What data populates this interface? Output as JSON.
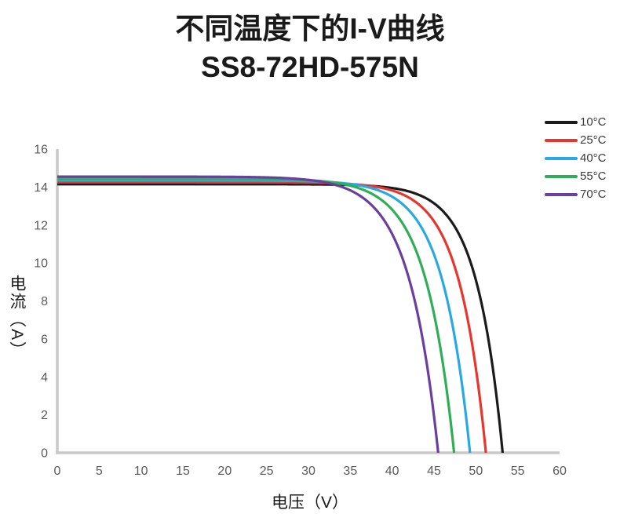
{
  "chart_data": {
    "type": "line",
    "title": "不同温度下的I-V曲线",
    "subtitle": "SS8-72HD-575N",
    "xlabel": "电压（V）",
    "ylabel": "电流（A）",
    "xlim": [
      0,
      60
    ],
    "ylim": [
      0,
      16
    ],
    "xticks": [
      0,
      5,
      10,
      15,
      20,
      25,
      30,
      35,
      40,
      45,
      50,
      55,
      60
    ],
    "yticks": [
      0,
      2,
      4,
      6,
      8,
      10,
      12,
      14,
      16
    ],
    "grid": false,
    "legend_position": "top-right",
    "axis_color": "#c9c9c9",
    "tick_label_color": "#5a5a5a",
    "series": [
      {
        "name": "10°C",
        "color": "#1b1b1b",
        "isc_a": 14.15,
        "voc_v": 53.2,
        "knee_v": 3.1,
        "points": [
          [
            0,
            14.15
          ],
          [
            5,
            14.15
          ],
          [
            10,
            14.15
          ],
          [
            15,
            14.15
          ],
          [
            20,
            14.15
          ],
          [
            25,
            14.15
          ],
          [
            30,
            14.14
          ],
          [
            35,
            14.11
          ],
          [
            40,
            13.95
          ],
          [
            45,
            13.14
          ],
          [
            48,
            11.51
          ],
          [
            50,
            9.11
          ],
          [
            52,
            4.55
          ],
          [
            53,
            0.88
          ],
          [
            53.2,
            0
          ]
        ]
      },
      {
        "name": "25°C",
        "color": "#e8352e",
        "isc_a": 14.25,
        "voc_v": 51.2,
        "knee_v": 3.2,
        "points": [
          [
            0,
            14.25
          ],
          [
            5,
            14.25
          ],
          [
            10,
            14.25
          ],
          [
            15,
            14.25
          ],
          [
            20,
            14.25
          ],
          [
            25,
            14.25
          ],
          [
            30,
            14.23
          ],
          [
            35,
            14.16
          ],
          [
            40,
            13.82
          ],
          [
            45,
            12.2
          ],
          [
            48,
            9.01
          ],
          [
            50,
            4.46
          ],
          [
            51,
            0.86
          ],
          [
            51.2,
            0
          ]
        ]
      },
      {
        "name": "40°C",
        "color": "#29a9e1",
        "isc_a": 14.35,
        "voc_v": 49.3,
        "knee_v": 3.3,
        "points": [
          [
            0,
            14.35
          ],
          [
            5,
            14.35
          ],
          [
            10,
            14.35
          ],
          [
            15,
            14.35
          ],
          [
            20,
            14.35
          ],
          [
            25,
            14.35
          ],
          [
            30,
            14.33
          ],
          [
            35,
            14.16
          ],
          [
            40,
            13.49
          ],
          [
            44,
            11.47
          ],
          [
            46,
            9.06
          ],
          [
            48,
            4.67
          ],
          [
            49,
            1.25
          ],
          [
            49.3,
            0
          ]
        ]
      },
      {
        "name": "55°C",
        "color": "#2fae57",
        "isc_a": 14.45,
        "voc_v": 47.4,
        "knee_v": 3.4,
        "points": [
          [
            0,
            14.45
          ],
          [
            5,
            14.45
          ],
          [
            10,
            14.45
          ],
          [
            15,
            14.45
          ],
          [
            20,
            14.45
          ],
          [
            25,
            14.45
          ],
          [
            30,
            14.41
          ],
          [
            35,
            14.07
          ],
          [
            40,
            12.81
          ],
          [
            42,
            11.5
          ],
          [
            44,
            9.13
          ],
          [
            46,
            4.87
          ],
          [
            47,
            1.6
          ],
          [
            47.4,
            0
          ]
        ]
      },
      {
        "name": "70°C",
        "color": "#6a3f9d",
        "isc_a": 14.55,
        "voc_v": 45.5,
        "knee_v": 3.5,
        "points": [
          [
            0,
            14.55
          ],
          [
            5,
            14.55
          ],
          [
            10,
            14.55
          ],
          [
            15,
            14.55
          ],
          [
            20,
            14.55
          ],
          [
            25,
            14.55
          ],
          [
            30,
            14.38
          ],
          [
            35,
            13.83
          ],
          [
            38,
            12.84
          ],
          [
            40,
            11.53
          ],
          [
            42,
            9.2
          ],
          [
            44,
            5.07
          ],
          [
            45,
            1.94
          ],
          [
            45.5,
            0
          ]
        ]
      }
    ]
  }
}
